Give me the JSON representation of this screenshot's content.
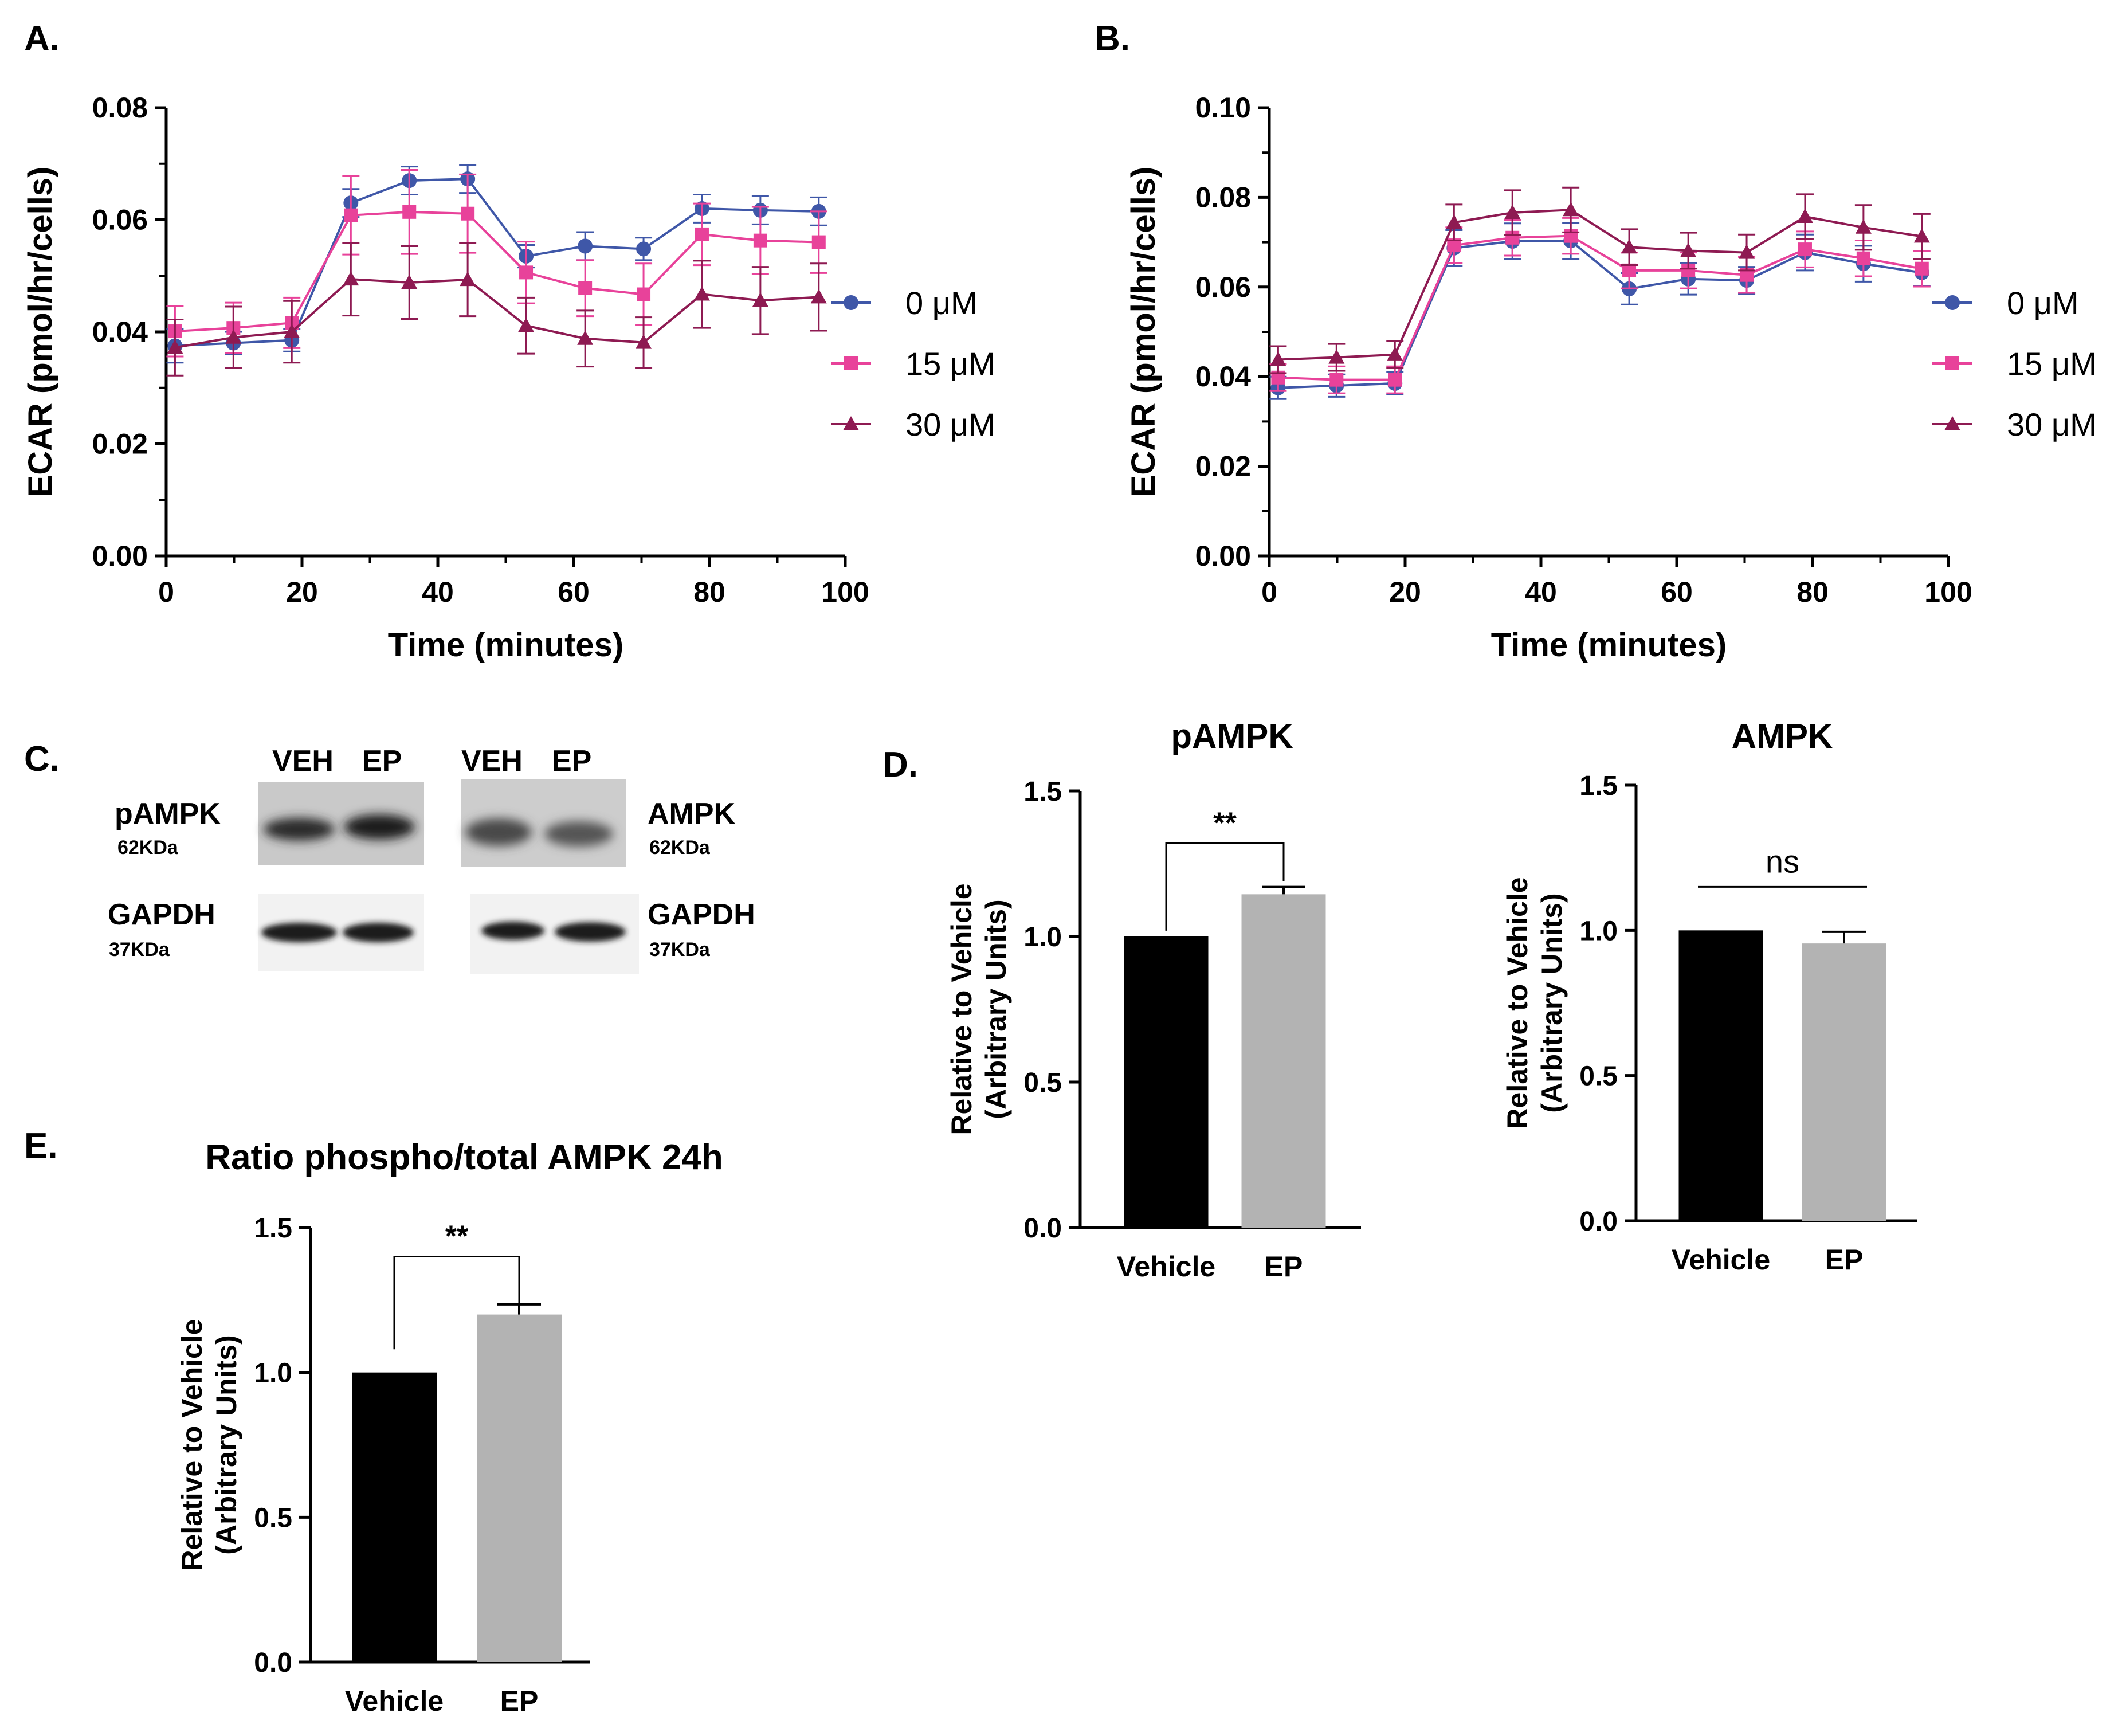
{
  "figure": {
    "panel_labels": [
      "A.",
      "B.",
      "C.",
      "D.",
      "E."
    ]
  },
  "colors": {
    "series_0uM": "#3f57a8",
    "series_15uM": "#e8429a",
    "series_30uM": "#8e1a52",
    "bar_vehicle": "#000000",
    "bar_ep": "#b3b3b3",
    "axis": "#000000"
  },
  "chart_data": [
    {
      "id": "A",
      "type": "line",
      "title": "",
      "xlabel": "Time (minutes)",
      "ylabel": "ECAR (pmol/hr/cells)",
      "xlim": [
        0,
        100
      ],
      "ylim": [
        0,
        0.08
      ],
      "xticks": [
        "0",
        "20",
        "40",
        "60",
        "80",
        "100"
      ],
      "yticks": [
        "0.00",
        "0.02",
        "0.04",
        "0.06",
        "0.08"
      ],
      "x": [
        1.3,
        9.9,
        18.5,
        27.2,
        35.8,
        44.4,
        53.0,
        61.7,
        70.3,
        78.9,
        87.5,
        96.1
      ],
      "legend": [
        "0 μM",
        "15 μM",
        "30 μM"
      ],
      "series": [
        {
          "name": "0 μM",
          "marker": "circle",
          "values": [
            0.0375,
            0.038,
            0.0385,
            0.063,
            0.067,
            0.0673,
            0.0535,
            0.0553,
            0.0548,
            0.062,
            0.0617,
            0.0615
          ],
          "err": [
            0.003,
            0.002,
            0.002,
            0.0025,
            0.0025,
            0.0025,
            0.002,
            0.0025,
            0.002,
            0.0025,
            0.0025,
            0.0025
          ]
        },
        {
          "name": "15 μM",
          "marker": "square",
          "values": [
            0.0401,
            0.0407,
            0.0416,
            0.0608,
            0.0614,
            0.0611,
            0.0506,
            0.0478,
            0.0467,
            0.0574,
            0.0563,
            0.056
          ],
          "err": [
            0.0045,
            0.0045,
            0.0045,
            0.007,
            0.0075,
            0.007,
            0.0055,
            0.005,
            0.0055,
            0.0055,
            0.006,
            0.0055
          ]
        },
        {
          "name": "30 μM",
          "marker": "triangle",
          "values": [
            0.0372,
            0.039,
            0.04,
            0.0494,
            0.0488,
            0.0493,
            0.0411,
            0.0388,
            0.0381,
            0.0467,
            0.0456,
            0.0462
          ],
          "err": [
            0.005,
            0.0055,
            0.0055,
            0.0065,
            0.0065,
            0.0065,
            0.005,
            0.005,
            0.0045,
            0.006,
            0.006,
            0.006
          ]
        }
      ]
    },
    {
      "id": "B",
      "type": "line",
      "title": "",
      "xlabel": "Time (minutes)",
      "ylabel": "ECAR (pmol/hr/cells)",
      "xlim": [
        0,
        100
      ],
      "ylim": [
        0,
        0.1
      ],
      "xticks": [
        "0",
        "20",
        "40",
        "60",
        "80",
        "100"
      ],
      "yticks": [
        "0.00",
        "0.02",
        "0.04",
        "0.06",
        "0.08",
        "0.10"
      ],
      "x": [
        1.3,
        9.9,
        18.5,
        27.2,
        35.8,
        44.4,
        53.0,
        61.7,
        70.3,
        78.9,
        87.5,
        96.1
      ],
      "legend": [
        "0 μM",
        "15 μM",
        "30 μM"
      ],
      "series": [
        {
          "name": "0 μM",
          "marker": "circle",
          "values": [
            0.0375,
            0.038,
            0.0385,
            0.0687,
            0.0702,
            0.0703,
            0.0596,
            0.0618,
            0.0615,
            0.0677,
            0.0652,
            0.0632
          ],
          "err": [
            0.0025,
            0.0025,
            0.0025,
            0.004,
            0.004,
            0.004,
            0.0035,
            0.0035,
            0.003,
            0.004,
            0.004,
            0.003
          ]
        },
        {
          "name": "15 μM",
          "marker": "square",
          "values": [
            0.0398,
            0.0393,
            0.0393,
            0.0693,
            0.071,
            0.0714,
            0.0637,
            0.0637,
            0.0627,
            0.0684,
            0.0664,
            0.0641
          ],
          "err": [
            0.003,
            0.003,
            0.003,
            0.004,
            0.004,
            0.004,
            0.004,
            0.004,
            0.004,
            0.004,
            0.004,
            0.004
          ]
        },
        {
          "name": "30 μM",
          "marker": "triangle",
          "values": [
            0.0438,
            0.0443,
            0.0449,
            0.0744,
            0.0766,
            0.0772,
            0.0689,
            0.0681,
            0.0677,
            0.0757,
            0.0733,
            0.0713
          ],
          "err": [
            0.003,
            0.003,
            0.003,
            0.004,
            0.005,
            0.005,
            0.004,
            0.004,
            0.004,
            0.005,
            0.005,
            0.005
          ]
        }
      ]
    },
    {
      "id": "D-pAMPK",
      "type": "bar",
      "title": "pAMPK",
      "xlabel": "",
      "ylabel": [
        "Relative to Vehicle",
        "(Arbitrary Units)"
      ],
      "ylim": [
        0,
        1.5
      ],
      "yticks": [
        "0.0",
        "0.5",
        "1.0",
        "1.5"
      ],
      "categories": [
        "Vehicle",
        "EP"
      ],
      "values": [
        1.0,
        1.145
      ],
      "err": [
        0,
        0.025
      ],
      "significance": "**"
    },
    {
      "id": "D-AMPK",
      "type": "bar",
      "title": "AMPK",
      "xlabel": "",
      "ylabel": [
        "Relative to Vehicle",
        "(Arbitrary Units)"
      ],
      "ylim": [
        0,
        1.5
      ],
      "yticks": [
        "0.0",
        "0.5",
        "1.0",
        "1.5"
      ],
      "categories": [
        "Vehicle",
        "EP"
      ],
      "values": [
        1.0,
        0.955
      ],
      "err": [
        0,
        0.04
      ],
      "significance": "ns"
    },
    {
      "id": "E",
      "type": "bar",
      "title": "Ratio phospho/total AMPK 24h",
      "xlabel": "",
      "ylabel": [
        "Relative to Vehicle",
        "(Arbitrary Units)"
      ],
      "ylim": [
        0,
        1.5
      ],
      "yticks": [
        "0.0",
        "0.5",
        "1.0",
        "1.5"
      ],
      "categories": [
        "Vehicle",
        "EP"
      ],
      "values": [
        1.0,
        1.2
      ],
      "err": [
        0,
        0.035
      ],
      "significance": "**"
    }
  ],
  "western_blot": {
    "lane_labels": [
      "VEH",
      "EP"
    ],
    "left": {
      "top": {
        "protein": "pAMPK",
        "size": "62KDa"
      },
      "bottom": {
        "protein": "GAPDH",
        "size": "37KDa"
      }
    },
    "right": {
      "top": {
        "protein": "AMPK",
        "size": "62KDa"
      },
      "bottom": {
        "protein": "GAPDH",
        "size": "37KDa"
      }
    }
  }
}
